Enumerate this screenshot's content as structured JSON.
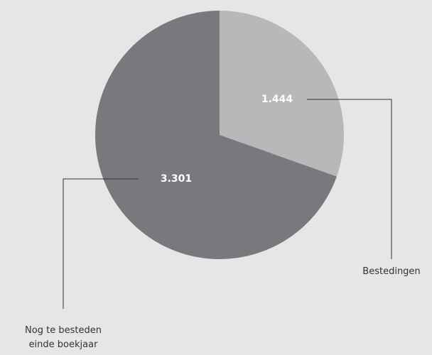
{
  "chart_data": {
    "type": "pie",
    "categories": [
      "Bestedingen",
      "Nog te besteden einde boekjaar"
    ],
    "values": [
      1444,
      3301
    ],
    "value_labels": [
      "1.444",
      "3.301"
    ],
    "colors": [
      "#b8b8ba",
      "#78797c"
    ]
  }
}
